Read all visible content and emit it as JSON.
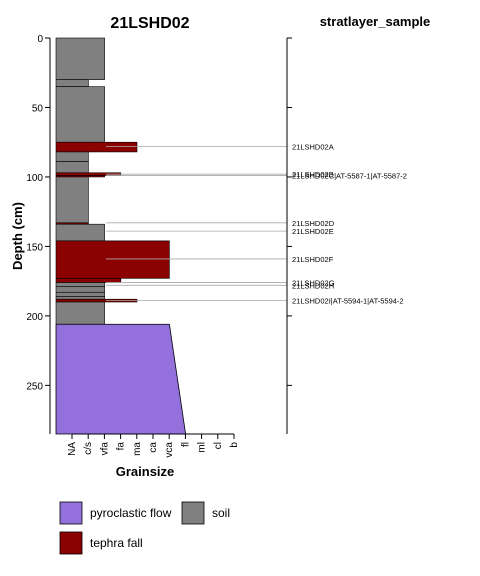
{
  "chart_data": {
    "type": "stratigraphic-column",
    "title": "21LSHD02",
    "right_title": "stratlayer_sample",
    "ylabel": "Depth (cm)",
    "xlabel": "Grainsize",
    "ylim": [
      0,
      285
    ],
    "y_ticks": [
      0,
      50,
      100,
      150,
      200,
      250
    ],
    "y_reversed": true,
    "grainsize_classes": [
      "NA",
      "c/s",
      "vfa",
      "fa",
      "ma",
      "ca",
      "vca",
      "fl",
      "ml",
      "cl",
      "b"
    ],
    "layers": [
      {
        "top": 0,
        "bottom": 30,
        "grainsize": "fa",
        "type": "soil"
      },
      {
        "top": 30,
        "bottom": 35,
        "grainsize": "vfa",
        "type": "soil"
      },
      {
        "top": 35,
        "bottom": 75,
        "grainsize": "fa",
        "type": "soil"
      },
      {
        "top": 75,
        "bottom": 82,
        "grainsize": "ca",
        "type": "tephra fall"
      },
      {
        "top": 82,
        "bottom": 89,
        "grainsize": "vfa",
        "type": "soil"
      },
      {
        "top": 89,
        "bottom": 97,
        "grainsize": "vfa",
        "type": "soil"
      },
      {
        "top": 97,
        "bottom": 99,
        "grainsize": "ma",
        "type": "tephra fall"
      },
      {
        "top": 99,
        "bottom": 100,
        "grainsize": "fa",
        "type": "tephra fall"
      },
      {
        "top": 100,
        "bottom": 133,
        "grainsize": "vfa",
        "type": "soil"
      },
      {
        "top": 133,
        "bottom": 134,
        "grainsize": "vfa",
        "type": "tephra fall"
      },
      {
        "top": 134,
        "bottom": 146,
        "grainsize": "fa",
        "type": "soil"
      },
      {
        "top": 146,
        "bottom": 173,
        "grainsize": "fl",
        "type": "tephra fall"
      },
      {
        "top": 173,
        "bottom": 176,
        "grainsize": "ma",
        "type": "tephra fall"
      },
      {
        "top": 176,
        "bottom": 179,
        "grainsize": "fa",
        "type": "soil"
      },
      {
        "top": 179,
        "bottom": 183,
        "grainsize": "fa",
        "type": "soil"
      },
      {
        "top": 183,
        "bottom": 186,
        "grainsize": "fa",
        "type": "soil"
      },
      {
        "top": 186,
        "bottom": 188,
        "grainsize": "fa",
        "type": "soil"
      },
      {
        "top": 188,
        "bottom": 190,
        "grainsize": "ca",
        "type": "tephra fall"
      },
      {
        "top": 190,
        "bottom": 206,
        "grainsize": "fa",
        "type": "soil"
      },
      {
        "top": 206,
        "bottom": 285,
        "grainsize_top": "fl",
        "grainsize_bottom": "ml",
        "type": "pyroclastic flow"
      }
    ],
    "samples": [
      {
        "label": "21LSHD02A",
        "depth": 78
      },
      {
        "label": "21LSHD02B",
        "depth": 98
      },
      {
        "label": "21LSHD02C|AT-5587-1|AT-5587-2",
        "depth": 99
      },
      {
        "label": "21LSHD02D",
        "depth": 133
      },
      {
        "label": "21LSHD02E",
        "depth": 139
      },
      {
        "label": "21LSHD02F",
        "depth": 159
      },
      {
        "label": "21LSHD02G",
        "depth": 176
      },
      {
        "label": "21LSHD02H",
        "depth": 178
      },
      {
        "label": "21LSHD02I|AT-5594-1|AT-5594-2",
        "depth": 189
      }
    ],
    "legend": [
      {
        "label": "pyroclastic flow",
        "color": "#9370db"
      },
      {
        "label": "soil",
        "color": "#808080"
      },
      {
        "label": "tephra fall",
        "color": "#8b0000"
      }
    ],
    "colors": {
      "pyroclastic flow": "#9370db",
      "soil": "#808080",
      "tephra fall": "#8b0000",
      "sample_line": "#aaaaaa"
    }
  }
}
